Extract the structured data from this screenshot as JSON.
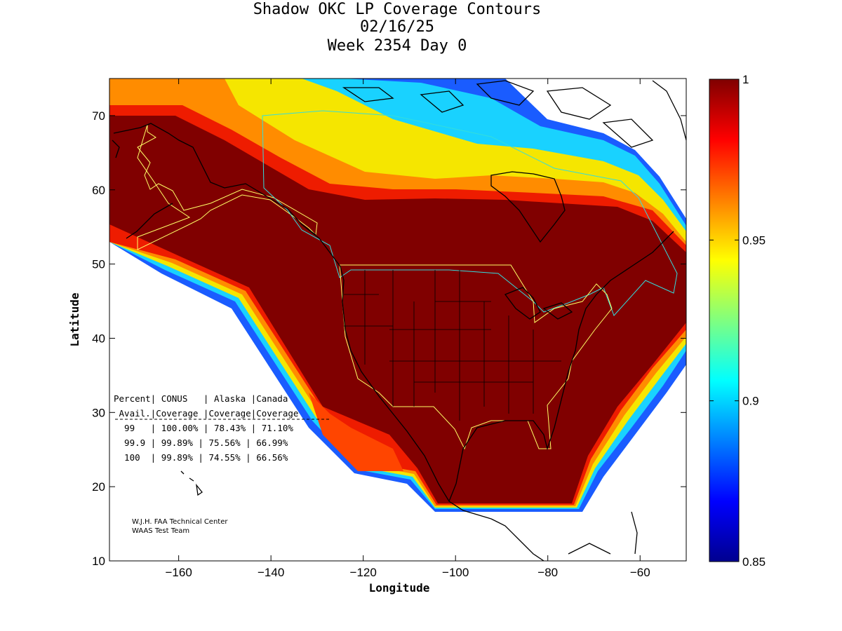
{
  "title": {
    "line1": "Shadow OKC LP Coverage Contours",
    "line2": "02/16/25",
    "line3": "Week 2354 Day 0"
  },
  "axes": {
    "xlabel": "Longitude",
    "ylabel": "Latitude",
    "xlim": [
      -175,
      -50
    ],
    "ylim": [
      10,
      75
    ],
    "xticks": [
      -160,
      -140,
      -120,
      -100,
      -80,
      -60
    ],
    "yticks": [
      10,
      20,
      30,
      40,
      50,
      60,
      70
    ]
  },
  "colorbar": {
    "min": 0.85,
    "max": 1,
    "ticks": [
      "1",
      "0.95",
      "0.9",
      "0.85"
    ],
    "tick_values": [
      1,
      0.95,
      0.9,
      0.85
    ]
  },
  "table": {
    "header1": "Percent| CONUS   | Alaska |Canada",
    "header2": " Avail.|Coverage |Coverage|Coverage",
    "rows": [
      "  99   | 100.00% | 78.43% | 71.10%",
      "  99.9 | 99.89% | 75.56% | 66.99%",
      "  100  | 99.89% | 74.55% | 66.56%"
    ]
  },
  "credits": {
    "line1": "W.J.H. FAA Technical Center",
    "line2": "WAAS Test Team"
  },
  "chart_data": {
    "type": "heatmap",
    "title": "Shadow OKC LP Coverage Contours",
    "subtitle": [
      "02/16/25",
      "Week 2354 Day 0"
    ],
    "xlabel": "Longitude",
    "ylabel": "Latitude",
    "xlim": [
      -175,
      -50
    ],
    "ylim": [
      10,
      75
    ],
    "colorbar_range": [
      0.85,
      1
    ],
    "coverage_table": {
      "columns": [
        "Percent Avail.",
        "CONUS Coverage",
        "Alaska Coverage",
        "Canada Coverage"
      ],
      "rows": [
        [
          "99",
          "100.00%",
          "78.43%",
          "71.10%"
        ],
        [
          "99.9",
          "99.89%",
          "75.56%",
          "66.99%"
        ],
        [
          "100",
          "99.89%",
          "74.55%",
          "66.56%"
        ]
      ]
    }
  }
}
